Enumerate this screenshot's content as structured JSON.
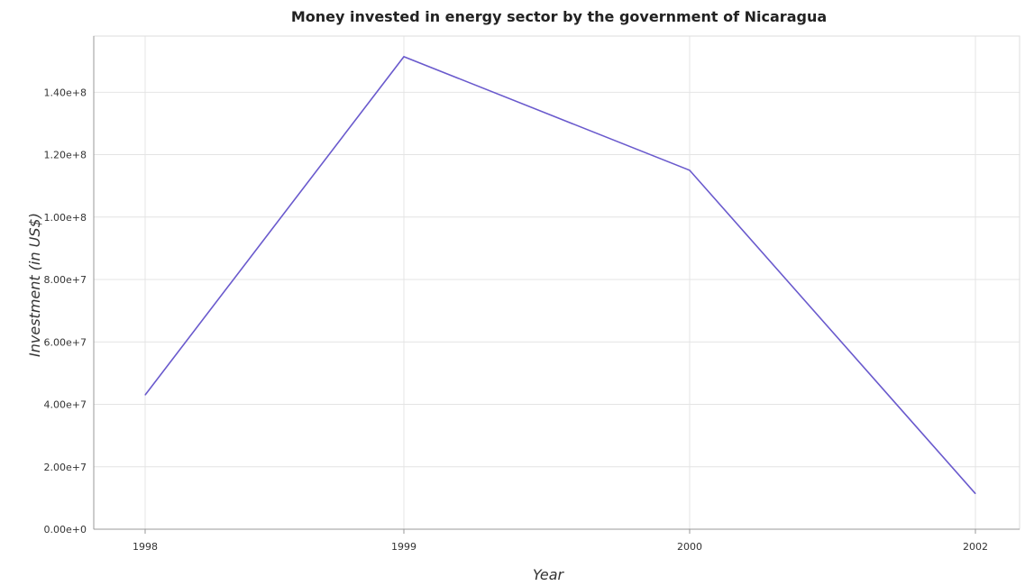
{
  "chart_data": {
    "type": "line",
    "title": "Money invested in energy sector by the government of Nicaragua",
    "xlabel": "Year",
    "ylabel": "Investment (in US$)",
    "categories": [
      "1998",
      "1999",
      "2000",
      "2002"
    ],
    "series": [
      {
        "values": [
          43000000,
          151400000,
          115000000,
          11400000
        ]
      }
    ],
    "ylim": [
      0,
      158000000
    ],
    "yticks": [
      0,
      20000000,
      40000000,
      60000000,
      80000000,
      100000000,
      120000000,
      140000000
    ],
    "ytick_labels": [
      "0.00e+0",
      "2.00e+7",
      "4.00e+7",
      "6.00e+7",
      "8.00e+7",
      "1.00e+8",
      "1.20e+8",
      "1.40e+8"
    ],
    "grid": true,
    "line_color": "#6a5acd"
  }
}
